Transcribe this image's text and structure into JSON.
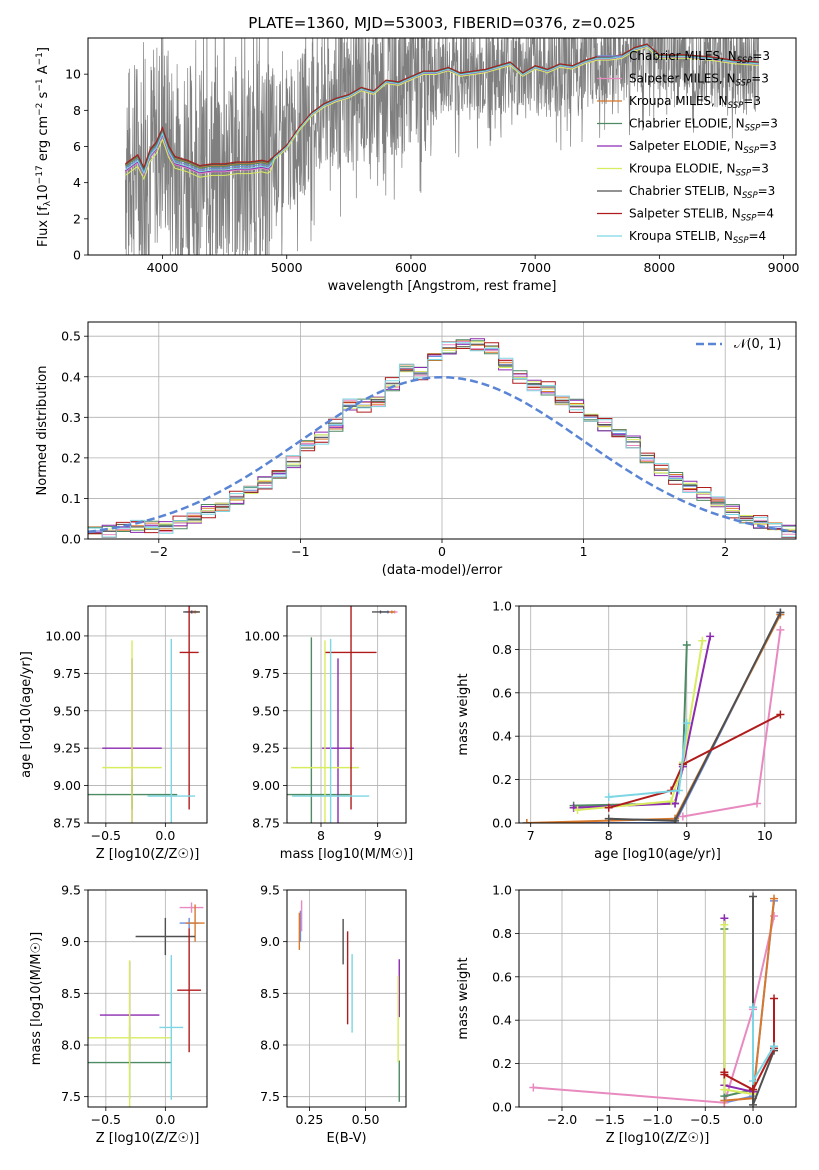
{
  "figure": {
    "title": "PLATE=1360, MJD=53003, FIBERID=0376, z=0.025",
    "colors": {
      "data": "#7f7f7f",
      "normal": "#5a84d4",
      "grid": "#b0b0b0",
      "models": [
        "#6c8ee0",
        "#e88ac0",
        "#d8782c",
        "#4e8a64",
        "#8c2ab0",
        "#d8ec60",
        "#505050",
        "#b01c1c",
        "#7cd6e4"
      ]
    },
    "legend": [
      "Chabrier MILES, N_SSP=3",
      "Salpeter MILES, N_SSP=3",
      "Kroupa MILES, N_SSP=3",
      "Chabrier ELODIE, N_SSP=3",
      "Salpeter ELODIE, N_SSP=3",
      "Kroupa ELODIE, N_SSP=3",
      "Chabrier STELIB, N_SSP=3",
      "Salpeter STELIB, N_SSP=4",
      "Kroupa STELIB, N_SSP=4"
    ]
  },
  "chart_data": [
    {
      "id": "spectrum",
      "type": "line",
      "xlabel": "wavelength [Angstrom, rest frame]",
      "ylabel": "Flux [f_λ 10^-17 erg cm^-2 s^-1 A^-1]",
      "xlim": [
        3400,
        9100
      ],
      "ylim": [
        0,
        12
      ],
      "xticks": [
        4000,
        5000,
        6000,
        7000,
        8000,
        9000
      ],
      "yticks": [
        0,
        2,
        4,
        6,
        8,
        10
      ],
      "legend_position": "top-right",
      "model_curve": {
        "x": [
          3700,
          3800,
          3850,
          3900,
          3950,
          4000,
          4050,
          4100,
          4200,
          4300,
          4400,
          4500,
          4600,
          4700,
          4800,
          4860,
          4900,
          5000,
          5100,
          5200,
          5300,
          5400,
          5500,
          5600,
          5700,
          5800,
          5900,
          6000,
          6100,
          6200,
          6300,
          6400,
          6500,
          6600,
          6700,
          6800,
          6900,
          7000,
          7100,
          7200,
          7300,
          7400,
          7500,
          7600,
          7700,
          7800,
          7900,
          8000,
          8200,
          8400,
          8600,
          8800
        ],
        "y": [
          4.8,
          5.3,
          4.6,
          5.6,
          6.0,
          6.8,
          5.8,
          5.2,
          5.0,
          4.7,
          4.8,
          4.8,
          4.9,
          4.9,
          5.0,
          4.9,
          5.4,
          6.0,
          7.0,
          7.8,
          8.3,
          8.6,
          8.8,
          9.2,
          9.0,
          9.6,
          9.5,
          9.8,
          10.1,
          10.1,
          10.3,
          10.0,
          10.1,
          10.2,
          10.4,
          10.6,
          10.0,
          10.4,
          10.2,
          10.5,
          10.4,
          10.7,
          10.9,
          10.9,
          11.0,
          11.4,
          11.6,
          11.0,
          11.0,
          10.9,
          10.7,
          10.6
        ],
        "offsets": [
          0.0,
          -0.2,
          0.15,
          0.1,
          -0.15,
          -0.4,
          0.2,
          0.25,
          -0.1
        ]
      },
      "series": [
        {
          "name": "Chabrier MILES, N_SSP=3"
        },
        {
          "name": "Salpeter MILES, N_SSP=3"
        },
        {
          "name": "Kroupa MILES, N_SSP=3"
        },
        {
          "name": "Chabrier ELODIE, N_SSP=3"
        },
        {
          "name": "Salpeter ELODIE, N_SSP=3"
        },
        {
          "name": "Kroupa ELODIE, N_SSP=3"
        },
        {
          "name": "Chabrier STELIB, N_SSP=3"
        },
        {
          "name": "Salpeter STELIB, N_SSP=4"
        },
        {
          "name": "Kroupa STELIB, N_SSP=4"
        }
      ]
    },
    {
      "id": "residuals",
      "type": "histogram",
      "xlabel": "(data-model)/error",
      "ylabel": "Normed distribution",
      "xlim": [
        -2.5,
        2.5
      ],
      "ylim": [
        0,
        0.535
      ],
      "xticks": [
        -2,
        -1,
        0,
        1,
        2
      ],
      "yticks": [
        0.0,
        0.1,
        0.2,
        0.3,
        0.4,
        0.5
      ],
      "legend": "N(0,1)",
      "legend_position": "top-right",
      "bin_edges_range": [
        -2.5,
        2.5
      ],
      "bins": 50,
      "heights": [
        0.02,
        0.02,
        0.03,
        0.03,
        0.03,
        0.03,
        0.04,
        0.05,
        0.07,
        0.08,
        0.1,
        0.12,
        0.14,
        0.16,
        0.19,
        0.23,
        0.25,
        0.28,
        0.33,
        0.33,
        0.34,
        0.38,
        0.42,
        0.41,
        0.45,
        0.47,
        0.48,
        0.48,
        0.47,
        0.43,
        0.4,
        0.38,
        0.37,
        0.34,
        0.33,
        0.3,
        0.28,
        0.26,
        0.24,
        0.2,
        0.17,
        0.15,
        0.13,
        0.11,
        0.09,
        0.07,
        0.05,
        0.04,
        0.03,
        0.02
      ],
      "jitter": [
        0.0,
        0.012,
        -0.01,
        0.015,
        -0.014,
        0.008,
        -0.006,
        0.018,
        -0.016
      ]
    },
    {
      "id": "age_vs_Z",
      "type": "errorbar",
      "xlabel": "Z [log10(Z/Z☉)]",
      "ylabel": "age  [log10(age/yr)]",
      "xlim": [
        -0.65,
        0.35
      ],
      "ylim": [
        8.75,
        10.2
      ],
      "xticks": [
        -0.5,
        0.0
      ],
      "yticks": [
        8.75,
        9.0,
        9.25,
        9.5,
        9.75,
        10.0
      ],
      "points": [
        {
          "x": 0.22,
          "y": 10.16,
          "xerr": 0.05,
          "yerr": 0.01
        },
        {
          "x": 0.23,
          "y": 10.16,
          "xerr": 0.04,
          "yerr": 0.01
        },
        {
          "x": 0.25,
          "y": 10.16,
          "xerr": 0.04,
          "yerr": 0.01
        },
        {
          "x": -0.28,
          "y": 8.94,
          "xerr": 0.38,
          "yerr": 0.1
        },
        {
          "x": -0.28,
          "y": 9.25,
          "xerr": 0.25,
          "yerr": 0.6
        },
        {
          "x": -0.28,
          "y": 9.12,
          "xerr": 0.25,
          "yerr": 0.85
        },
        {
          "x": 0.22,
          "y": 10.16,
          "xerr": 0.07,
          "yerr": 0.01
        },
        {
          "x": 0.2,
          "y": 9.89,
          "xerr": 0.08,
          "yerr": 1.05
        },
        {
          "x": 0.05,
          "y": 8.93,
          "xerr": 0.2,
          "yerr": 1.05
        }
      ]
    },
    {
      "id": "age_vs_mass",
      "type": "errorbar",
      "xlabel": "mass [log10(M/M☉)]",
      "ylabel": "",
      "xlim": [
        7.4,
        9.5
      ],
      "ylim": [
        8.75,
        10.2
      ],
      "xticks": [
        8,
        9
      ],
      "yticks": [
        8.75,
        9.0,
        9.25,
        9.5,
        9.75,
        10.0
      ],
      "points": [
        {
          "x": 9.18,
          "y": 10.16,
          "xerr": 0.12,
          "yerr": 0.01
        },
        {
          "x": 9.3,
          "y": 10.16,
          "xerr": 0.05,
          "yerr": 0.01
        },
        {
          "x": 9.25,
          "y": 10.16,
          "xerr": 0.05,
          "yerr": 0.01
        },
        {
          "x": 7.83,
          "y": 8.94,
          "xerr": 0.68,
          "yerr": 1.05
        },
        {
          "x": 8.3,
          "y": 9.25,
          "xerr": 0.28,
          "yerr": 0.6
        },
        {
          "x": 8.07,
          "y": 9.12,
          "xerr": 0.6,
          "yerr": 0.85
        },
        {
          "x": 9.05,
          "y": 10.16,
          "xerr": 0.15,
          "yerr": 0.01
        },
        {
          "x": 8.53,
          "y": 9.89,
          "xerr": 0.45,
          "yerr": 1.05
        },
        {
          "x": 8.17,
          "y": 8.93,
          "xerr": 0.68,
          "yerr": 1.05
        }
      ]
    },
    {
      "id": "massweight_vs_age",
      "type": "line",
      "xlabel": "age  [log10(age/yr)]",
      "ylabel": "mass weight",
      "xlim": [
        6.85,
        10.4
      ],
      "ylim": [
        0,
        1.0
      ],
      "xticks": [
        7,
        8,
        9,
        10
      ],
      "yticks": [
        0.0,
        0.2,
        0.4,
        0.6,
        0.8,
        1.0
      ],
      "series": [
        {
          "x": [
            6.95,
            8.85,
            10.2
          ],
          "y": [
            0.0,
            0.0,
            0.97
          ]
        },
        {
          "x": [
            8.95,
            9.9,
            10.2
          ],
          "y": [
            0.03,
            0.09,
            0.89
          ]
        },
        {
          "x": [
            6.95,
            8.85,
            10.2
          ],
          "y": [
            0.0,
            0.02,
            0.96
          ]
        },
        {
          "x": [
            7.55,
            8.85,
            8.95,
            9.0
          ],
          "y": [
            0.08,
            0.09,
            0.27,
            0.82
          ]
        },
        {
          "x": [
            7.55,
            8.85,
            8.95,
            9.3
          ],
          "y": [
            0.07,
            0.09,
            0.26,
            0.86
          ]
        },
        {
          "x": [
            7.6,
            8.8,
            8.95,
            9.2
          ],
          "y": [
            0.06,
            0.1,
            0.28,
            0.84
          ]
        },
        {
          "x": [
            8.0,
            8.85,
            10.2
          ],
          "y": [
            0.02,
            0.01,
            0.97
          ]
        },
        {
          "x": [
            8.0,
            8.8,
            8.95,
            10.2
          ],
          "y": [
            0.07,
            0.15,
            0.27,
            0.5
          ]
        },
        {
          "x": [
            8.0,
            8.9,
            9.0
          ],
          "y": [
            0.12,
            0.15,
            0.46
          ]
        }
      ]
    },
    {
      "id": "mass_vs_Z",
      "type": "errorbar",
      "xlabel": "Z [log10(Z/Z☉)]",
      "ylabel": "mass [log10(M/M☉)]",
      "xlim": [
        -0.65,
        0.35
      ],
      "ylim": [
        7.4,
        9.5
      ],
      "xticks": [
        -0.5,
        0.0
      ],
      "yticks": [
        7.5,
        8.0,
        8.5,
        9.0,
        9.5
      ],
      "points": [
        {
          "x": 0.2,
          "y": 9.18,
          "xerr": 0.08,
          "yerr": 0.05
        },
        {
          "x": 0.22,
          "y": 9.33,
          "xerr": 0.1,
          "yerr": 0.05
        },
        {
          "x": 0.25,
          "y": 9.18,
          "xerr": 0.08,
          "yerr": 0.18
        },
        {
          "x": -0.3,
          "y": 7.83,
          "xerr": 0.35,
          "yerr": 0.35
        },
        {
          "x": -0.3,
          "y": 8.29,
          "xerr": 0.25,
          "yerr": 0.52
        },
        {
          "x": -0.3,
          "y": 8.07,
          "xerr": 0.35,
          "yerr": 0.75
        },
        {
          "x": 0.0,
          "y": 9.05,
          "xerr": 0.25,
          "yerr": 0.18
        },
        {
          "x": 0.2,
          "y": 8.53,
          "xerr": 0.1,
          "yerr": 0.6
        },
        {
          "x": 0.05,
          "y": 8.17,
          "xerr": 0.1,
          "yerr": 0.7
        }
      ]
    },
    {
      "id": "mass_vs_ebv",
      "type": "errorbar",
      "xlabel": "E(B-V)",
      "ylabel": "",
      "xlim": [
        0.15,
        0.68
      ],
      "ylim": [
        7.4,
        9.5
      ],
      "xticks": [
        0.25,
        0.5
      ],
      "yticks": [
        7.5,
        8.0,
        8.5,
        9.0,
        9.5
      ],
      "points": [
        {
          "x": 0.21,
          "y": 9.15,
          "xerr": 0.0,
          "yerr": 0.15
        },
        {
          "x": 0.215,
          "y": 9.25,
          "xerr": 0.0,
          "yerr": 0.15
        },
        {
          "x": 0.205,
          "y": 9.1,
          "xerr": 0.0,
          "yerr": 0.18
        },
        {
          "x": 0.65,
          "y": 7.65,
          "xerr": 0.0,
          "yerr": 0.2
        },
        {
          "x": 0.65,
          "y": 8.55,
          "xerr": 0.0,
          "yerr": 0.28
        },
        {
          "x": 0.645,
          "y": 8.25,
          "xerr": 0.0,
          "yerr": 0.42
        },
        {
          "x": 0.4,
          "y": 9.0,
          "xerr": 0.0,
          "yerr": 0.22
        },
        {
          "x": 0.42,
          "y": 8.65,
          "xerr": 0.0,
          "yerr": 0.45
        },
        {
          "x": 0.44,
          "y": 8.5,
          "xerr": 0.0,
          "yerr": 0.38
        }
      ]
    },
    {
      "id": "massweight_vs_Z",
      "type": "line",
      "xlabel": "Z [log10(Z/Z☉)]",
      "ylabel": "mass weight",
      "xlim": [
        -2.45,
        0.45
      ],
      "ylim": [
        0,
        1.0
      ],
      "xticks": [
        -2.0,
        -1.5,
        -1.0,
        -0.5,
        0.0
      ],
      "yticks": [
        0.0,
        0.2,
        0.4,
        0.6,
        0.8,
        1.0
      ],
      "series": [
        {
          "x": [
            -0.3,
            0.0,
            0.22
          ],
          "y": [
            0.02,
            0.05,
            0.95
          ]
        },
        {
          "x": [
            -2.3,
            -0.3,
            0.0,
            0.22
          ],
          "y": [
            0.09,
            0.02,
            0.45,
            0.88
          ]
        },
        {
          "x": [
            -0.3,
            0.0,
            0.22
          ],
          "y": [
            0.03,
            0.04,
            0.96
          ]
        },
        {
          "x": [
            -0.3,
            -0.3,
            0.0
          ],
          "y": [
            0.82,
            0.05,
            0.08
          ]
        },
        {
          "x": [
            -0.3,
            -0.3,
            0.0
          ],
          "y": [
            0.87,
            0.1,
            0.07
          ]
        },
        {
          "x": [
            -0.3,
            -0.3,
            0.0
          ],
          "y": [
            0.84,
            0.08,
            0.06
          ]
        },
        {
          "x": [
            0.0,
            0.0,
            0.22
          ],
          "y": [
            0.97,
            0.01,
            0.26
          ]
        },
        {
          "x": [
            -0.3,
            -0.3,
            0.0,
            0.22,
            0.22
          ],
          "y": [
            0.16,
            0.15,
            0.08,
            0.27,
            0.5
          ]
        },
        {
          "x": [
            0.0,
            0.0,
            0.22
          ],
          "y": [
            0.46,
            0.12,
            0.28
          ]
        }
      ]
    }
  ]
}
